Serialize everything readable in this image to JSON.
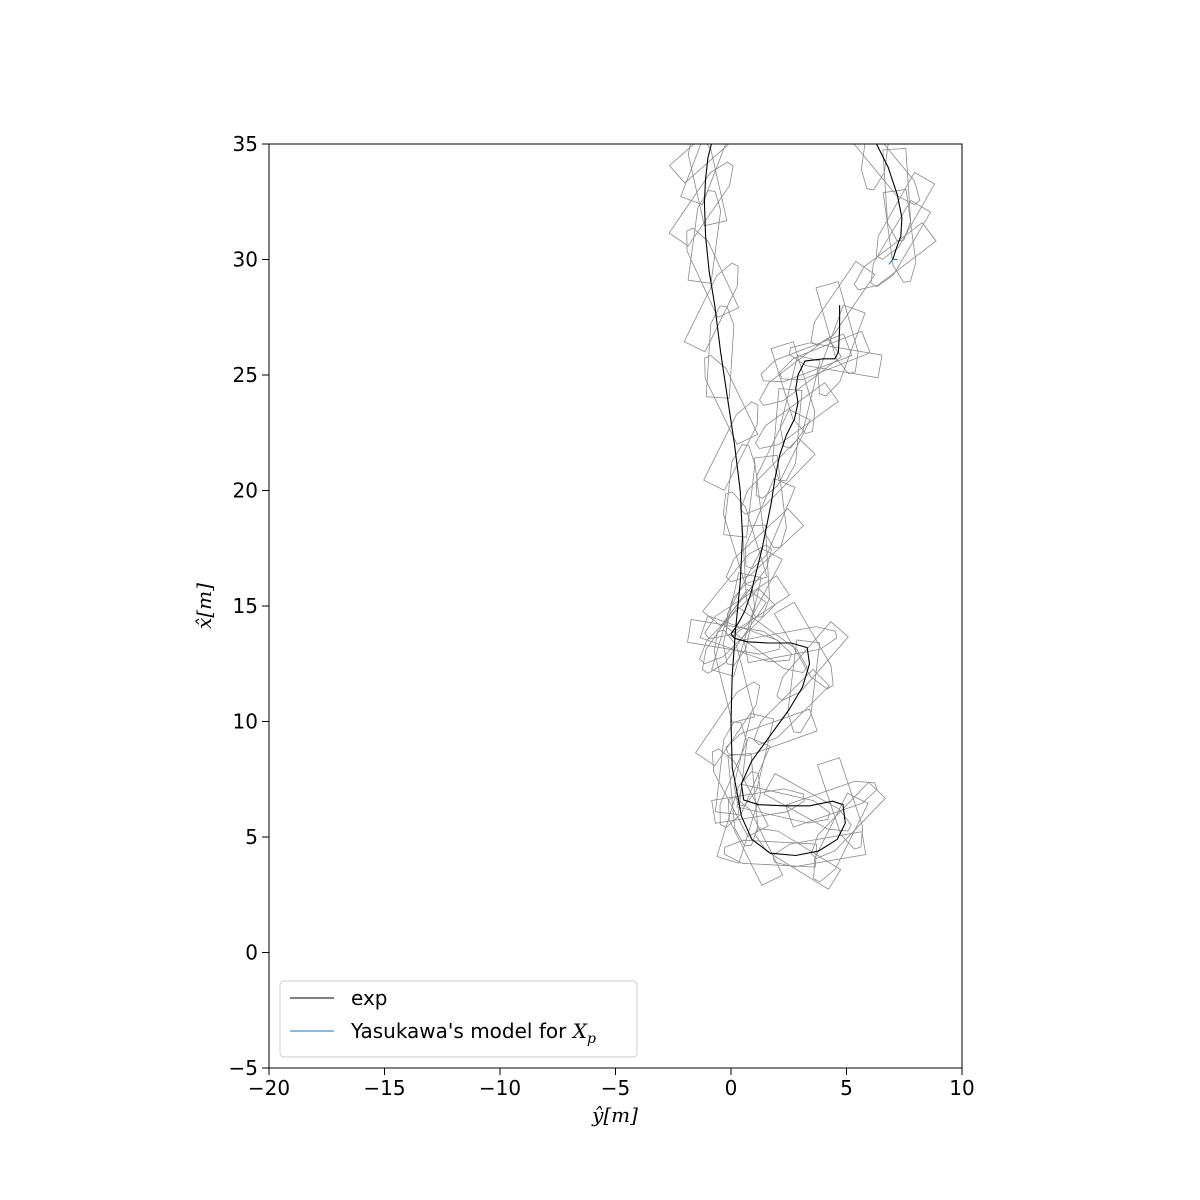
{
  "chart_data": {
    "type": "line",
    "title": "",
    "xlabel": "ŷ[m]",
    "ylabel": "x̂[m]",
    "xlim": [
      -20,
      10
    ],
    "ylim": [
      -5,
      35
    ],
    "x_ticks": [
      -20,
      -15,
      -10,
      -5,
      0,
      5,
      10
    ],
    "y_ticks": [
      -5,
      0,
      5,
      10,
      15,
      20,
      25,
      30,
      35
    ],
    "x_tick_labels": [
      "−20",
      "−15",
      "−10",
      "−5",
      "0",
      "5",
      "10"
    ],
    "y_tick_labels": [
      "−5",
      "0",
      "5",
      "10",
      "15",
      "20",
      "25",
      "30",
      "35"
    ],
    "grid": false,
    "legend_position": "lower-left",
    "series": [
      {
        "name": "exp",
        "color": "#000000",
        "x": [
          4.7,
          4.7,
          4.65,
          4.5,
          4.0,
          3.2,
          2.9,
          2.8,
          2.9,
          2.75,
          2.4,
          2.1,
          1.9,
          1.75,
          1.55,
          1.35,
          1.1,
          0.85,
          0.6,
          0.4,
          0.15,
          0.0,
          0.15,
          0.7,
          1.6,
          2.6,
          3.3,
          3.4,
          3.1,
          2.5,
          1.7,
          0.9,
          0.45,
          0.55,
          1.2,
          2.3,
          3.4,
          4.4,
          4.85,
          4.95,
          4.6,
          3.8,
          2.8,
          1.7,
          0.9,
          0.45,
          0.25,
          0.05,
          0.0,
          0.05,
          0.2,
          0.4,
          0.5,
          0.4,
          0.15,
          -0.15,
          -0.45,
          -0.7,
          -0.95,
          -1.1,
          -1.15,
          -1.1,
          -1.0,
          -0.85
        ],
        "y": [
          28.0,
          27.0,
          26.0,
          25.7,
          25.7,
          25.6,
          25.0,
          24.4,
          23.8,
          23.1,
          22.4,
          21.5,
          20.5,
          19.5,
          18.5,
          17.5,
          16.5,
          15.5,
          14.8,
          14.4,
          14.0,
          13.8,
          13.6,
          13.45,
          13.4,
          13.4,
          13.2,
          12.5,
          11.5,
          10.5,
          9.4,
          8.3,
          7.3,
          6.6,
          6.4,
          6.35,
          6.35,
          6.55,
          6.4,
          5.6,
          4.9,
          4.4,
          4.2,
          4.3,
          4.9,
          5.9,
          7.0,
          8.0,
          10.0,
          12.0,
          14.0,
          16.0,
          18.0,
          20.0,
          22.0,
          24.0,
          26.0,
          28.0,
          29.5,
          31.0,
          32.5,
          33.5,
          34.4,
          35.0
        ]
      },
      {
        "name": "exp",
        "color": "#000000",
        "x": [
          6.3,
          6.8,
          7.2,
          7.4,
          7.35,
          7.2,
          7.0
        ],
        "y": [
          35.0,
          34.0,
          32.8,
          31.8,
          31.0,
          30.6,
          30.0
        ]
      },
      {
        "name": "Yasukawa's model for X_p",
        "color": "#1f77b4",
        "x": [
          6.85,
          7.0,
          7.2
        ],
        "y": [
          29.8,
          30.0,
          30.0
        ]
      }
    ],
    "legend": {
      "entries": [
        {
          "label": "exp",
          "color": "#000000"
        },
        {
          "label": "Yasukawa's model for ",
          "math": "X",
          "math_sub": "p",
          "color": "#1f77b4"
        }
      ]
    }
  }
}
